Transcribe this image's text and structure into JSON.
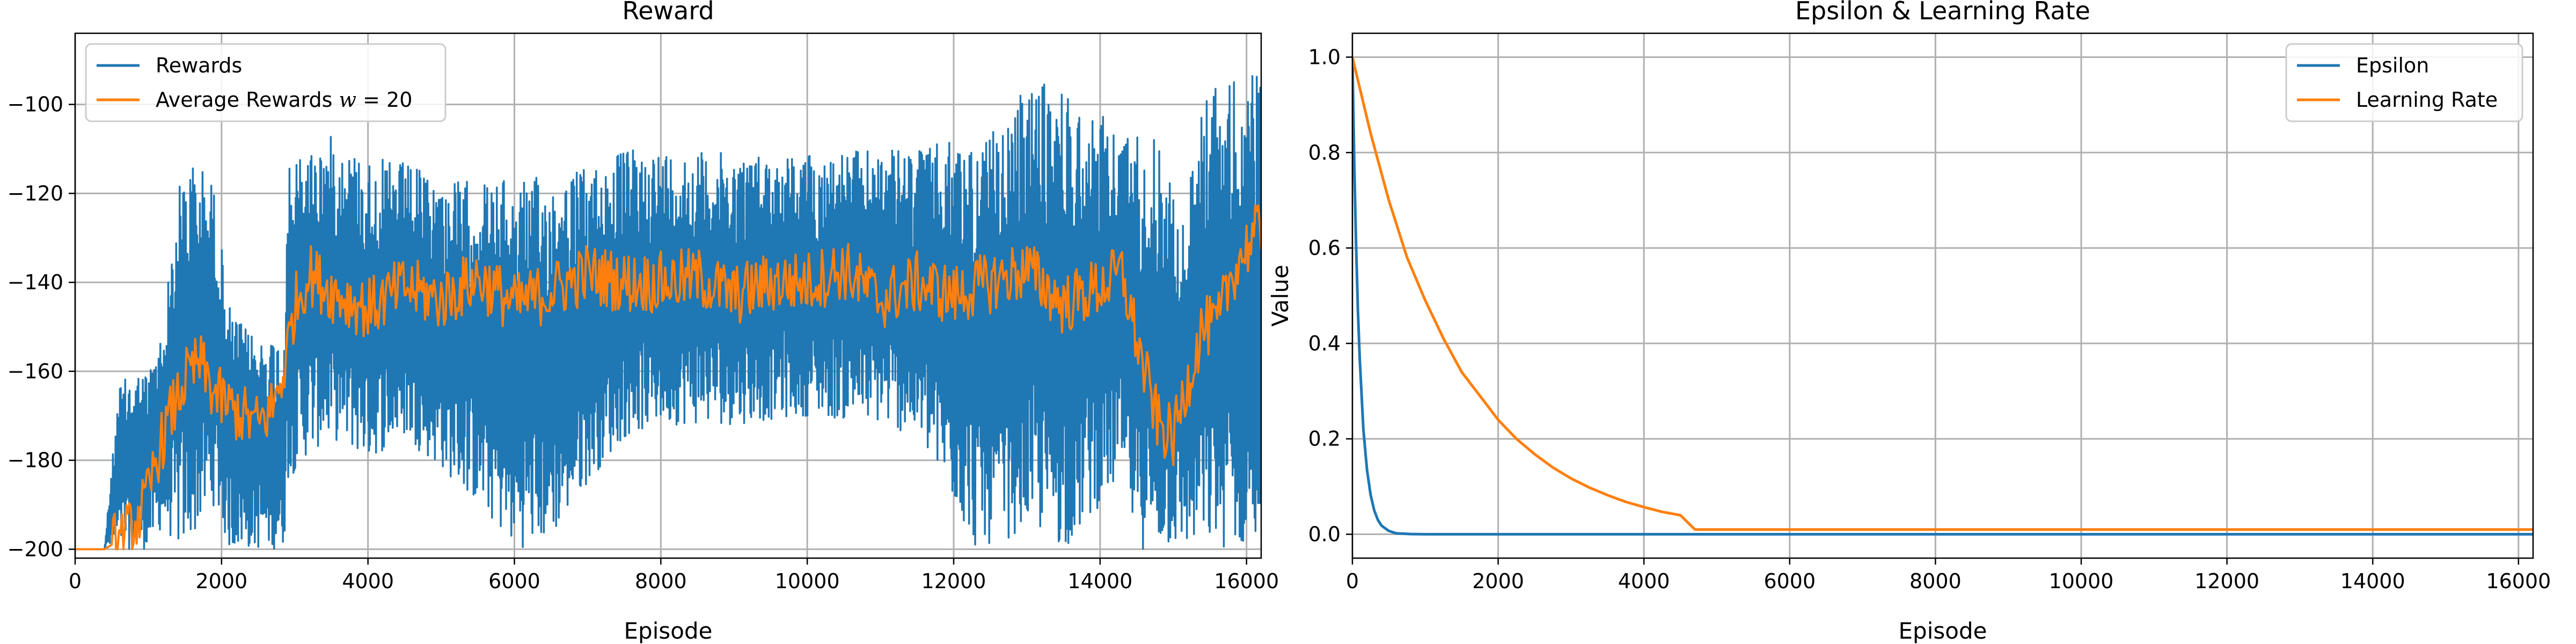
{
  "chart_data": [
    {
      "type": "line",
      "title": "Reward",
      "xlabel": "Episode",
      "ylabel": "",
      "xlim": [
        0,
        16200
      ],
      "ylim": [
        -202,
        -84
      ],
      "xticks": [
        0,
        2000,
        4000,
        6000,
        8000,
        10000,
        12000,
        14000,
        16000
      ],
      "xtick_labels": [
        "0",
        "2000",
        "4000",
        "6000",
        "8000",
        "10000",
        "12000",
        "14000",
        "16000"
      ],
      "yticks": [
        -200,
        -180,
        -160,
        -140,
        -120,
        -100
      ],
      "ytick_labels": [
        "−200",
        "−180",
        "−160",
        "−140",
        "−120",
        "−100"
      ],
      "grid": true,
      "legend_position": "top-left",
      "series": [
        {
          "name": "Rewards",
          "color": "#1f77b4",
          "style": "band",
          "x": [
            0,
            400,
            600,
            800,
            1000,
            1200,
            1400,
            1500,
            1700,
            1900,
            2100,
            2300,
            2500,
            2700,
            2850,
            2900,
            3100,
            3500,
            4000,
            4500,
            5000,
            5500,
            6000,
            6500,
            7000,
            7500,
            8000,
            9000,
            10000,
            11000,
            11500,
            12000,
            12300,
            12700,
            13000,
            13200,
            13500,
            13700,
            14000,
            14300,
            14500,
            14700,
            14900,
            15100,
            15300,
            15500,
            15700,
            15900,
            16200
          ],
          "upper": [
            -200,
            -200,
            -163,
            -160,
            -160,
            -150,
            -120,
            -112,
            -113,
            -118,
            -145,
            -150,
            -152,
            -152,
            -152,
            -115,
            -110,
            -107,
            -112,
            -113,
            -117,
            -117,
            -117,
            -116,
            -114,
            -110,
            -110,
            -111,
            -111,
            -110,
            -110,
            -108,
            -108,
            -105,
            -95,
            -95,
            -95,
            -100,
            -102,
            -106,
            -105,
            -107,
            -108,
            -130,
            -108,
            -93,
            -95,
            -94,
            -92
          ],
          "lower": [
            -200,
            -200,
            -200,
            -200,
            -200,
            -195,
            -200,
            -200,
            -195,
            -190,
            -200,
            -200,
            -200,
            -200,
            -200,
            -185,
            -180,
            -175,
            -180,
            -175,
            -182,
            -190,
            -200,
            -198,
            -185,
            -175,
            -172,
            -172,
            -170,
            -172,
            -175,
            -190,
            -200,
            -198,
            -195,
            -197,
            -200,
            -197,
            -190,
            -185,
            -200,
            -200,
            -200,
            -200,
            -200,
            -200,
            -200,
            -200,
            -200
          ]
        },
        {
          "name": "Average Rewards $w = 20$",
          "color": "#ff7f0e",
          "style": "line",
          "x": [
            0,
            400,
            600,
            800,
            1000,
            1100,
            1300,
            1500,
            1700,
            1900,
            2100,
            2300,
            2500,
            2700,
            2850,
            3000,
            3200,
            3500,
            4000,
            4500,
            5000,
            5500,
            6000,
            6500,
            7000,
            7500,
            8000,
            8500,
            9000,
            9500,
            10000,
            10500,
            11000,
            11500,
            12000,
            12500,
            13000,
            13500,
            14000,
            14300,
            14600,
            14800,
            15000,
            15200,
            15400,
            15600,
            15800,
            16000,
            16200
          ],
          "y": [
            -200,
            -200,
            -198,
            -195,
            -188,
            -180,
            -170,
            -162,
            -158,
            -165,
            -168,
            -170,
            -172,
            -168,
            -160,
            -145,
            -138,
            -142,
            -146,
            -141,
            -144,
            -139,
            -145,
            -142,
            -138,
            -140,
            -140,
            -139,
            -143,
            -140,
            -140,
            -137,
            -144,
            -140,
            -143,
            -140,
            -137,
            -145,
            -141,
            -138,
            -160,
            -172,
            -175,
            -162,
            -150,
            -150,
            -138,
            -132,
            -128
          ]
        }
      ]
    },
    {
      "type": "line",
      "title": "Epsilon & Learning Rate",
      "xlabel": "Episode",
      "ylabel": "Value",
      "xlim": [
        0,
        16200
      ],
      "ylim": [
        -0.05,
        1.05
      ],
      "xticks": [
        0,
        2000,
        4000,
        6000,
        8000,
        10000,
        12000,
        14000,
        16000
      ],
      "xtick_labels": [
        "0",
        "2000",
        "4000",
        "6000",
        "8000",
        "10000",
        "12000",
        "14000",
        "16000"
      ],
      "yticks": [
        0.0,
        0.2,
        0.4,
        0.6,
        0.8,
        1.0
      ],
      "ytick_labels": [
        "0.0",
        "0.2",
        "0.4",
        "0.6",
        "0.8",
        "1.0"
      ],
      "grid": true,
      "legend_position": "top-right",
      "series": [
        {
          "name": "Epsilon",
          "color": "#1f77b4",
          "style": "line",
          "x": [
            0,
            25,
            50,
            75,
            100,
            150,
            200,
            250,
            300,
            350,
            400,
            500,
            600,
            800,
            1000,
            2000,
            4000,
            8000,
            12000,
            16200
          ],
          "y": [
            1.0,
            0.78,
            0.61,
            0.47,
            0.37,
            0.22,
            0.135,
            0.082,
            0.05,
            0.03,
            0.018,
            0.007,
            0.002,
            0.0005,
            0.0001,
            0.0,
            0.0,
            0.0,
            0.0,
            0.0
          ]
        },
        {
          "name": "Learning Rate",
          "color": "#ff7f0e",
          "style": "line",
          "x": [
            0,
            250,
            500,
            750,
            1000,
            1250,
            1500,
            1750,
            2000,
            2250,
            2500,
            2750,
            3000,
            3250,
            3500,
            3750,
            4000,
            4250,
            4500,
            4700,
            6000,
            8000,
            10000,
            12000,
            14000,
            16200
          ],
          "y": [
            1.0,
            0.84,
            0.7,
            0.58,
            0.49,
            0.41,
            0.34,
            0.29,
            0.24,
            0.2,
            0.168,
            0.14,
            0.117,
            0.098,
            0.082,
            0.068,
            0.057,
            0.047,
            0.04,
            0.01,
            0.01,
            0.01,
            0.01,
            0.01,
            0.01,
            0.01
          ]
        }
      ]
    }
  ]
}
